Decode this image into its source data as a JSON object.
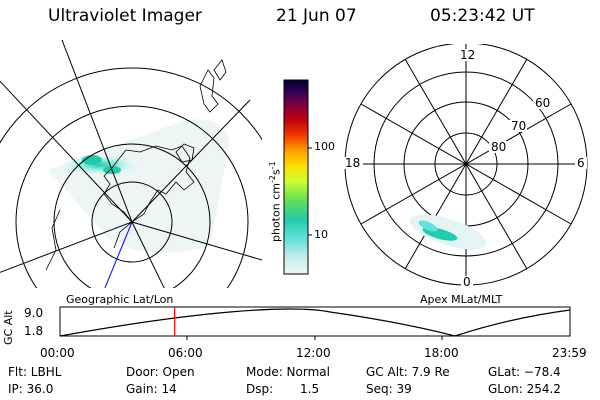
{
  "header": {
    "instrument": "Ultraviolet Imager",
    "date": "21 Jun 07",
    "time": "05:23:42 UT"
  },
  "colorbar": {
    "unit_label": "photon cm",
    "unit_sup1": "-2",
    "unit_mid": "s",
    "unit_sup2": "-1",
    "ticks": [
      "100",
      "10"
    ],
    "colors": [
      "#000033",
      "#220044",
      "#550066",
      "#880033",
      "#bb0011",
      "#dd2200",
      "#ee5500",
      "#ff9900",
      "#ffcc00",
      "#ffff00",
      "#ccff33",
      "#88ee44",
      "#44dd66",
      "#22ccaa",
      "#33ddcc",
      "#88eeee",
      "#cceeee",
      "#eef6f6"
    ]
  },
  "map_left": {
    "caption": "Geographic Lat/Lon"
  },
  "map_right": {
    "caption": "Apex MLat/MLT",
    "mlt_labels": [
      "12",
      "18",
      "6",
      "0"
    ],
    "lat_labels": [
      "60",
      "70",
      "80"
    ]
  },
  "timeline": {
    "ylabel": "GC Alt",
    "ytick_top": "9.0",
    "ytick_bottom": "1.8",
    "xticks": [
      "00:00",
      "06:00",
      "12:00",
      "18:00",
      "23:59"
    ],
    "marker_fraction": 0.2248
  },
  "footer": {
    "filter": "Flt: LBHL",
    "door": "Door: Open",
    "mode": "Mode: Normal",
    "gc_alt": "GC Alt: 7.9 Re",
    "glat": "GLat: −78.4",
    "ip": "IP: 36.0",
    "gain": "Gain: 14",
    "dsp_label": "Dsp:",
    "dsp_value": "1.5",
    "seq": "Seq: 39",
    "glon": "GLon: 254.2"
  }
}
